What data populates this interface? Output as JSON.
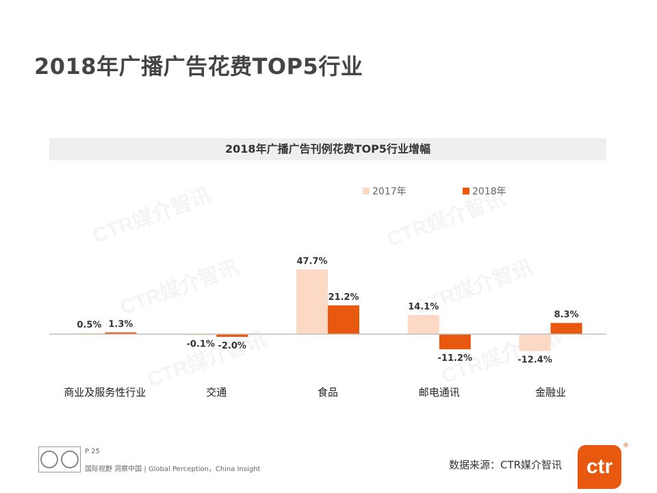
{
  "page": {
    "title": "2018年广播广告花费TOP5行业",
    "watermark_text": "CTR媒介智讯"
  },
  "chart_data": {
    "type": "bar",
    "title": "2018年广播广告刊例花费TOP5行业增幅",
    "categories": [
      "商业及服务性行业",
      "交通",
      "食品",
      "邮电通讯",
      "金融业"
    ],
    "series": [
      {
        "name": "2017年",
        "values": [
          0.5,
          -0.1,
          47.7,
          14.1,
          -12.4
        ],
        "labels": [
          "0.5%",
          "-0.1%",
          "47.7%",
          "14.1%",
          "-12.4%"
        ],
        "color": "#fbd9c5"
      },
      {
        "name": "2018年",
        "values": [
          1.3,
          -2.0,
          21.2,
          -11.2,
          8.3
        ],
        "labels": [
          "1.3%",
          "-2.0%",
          "21.2%",
          "-11.2%",
          "8.3%"
        ],
        "color": "#e8580f"
      }
    ],
    "legend_position": "top",
    "unit": "%"
  },
  "footer": {
    "page_number": "P 25",
    "slogan": "国际视野  洞察中国 |  Global Perception，China Insight",
    "source": "数据来源：CTR媒介智讯",
    "logo_text": "ctr",
    "registered_mark": "®"
  }
}
